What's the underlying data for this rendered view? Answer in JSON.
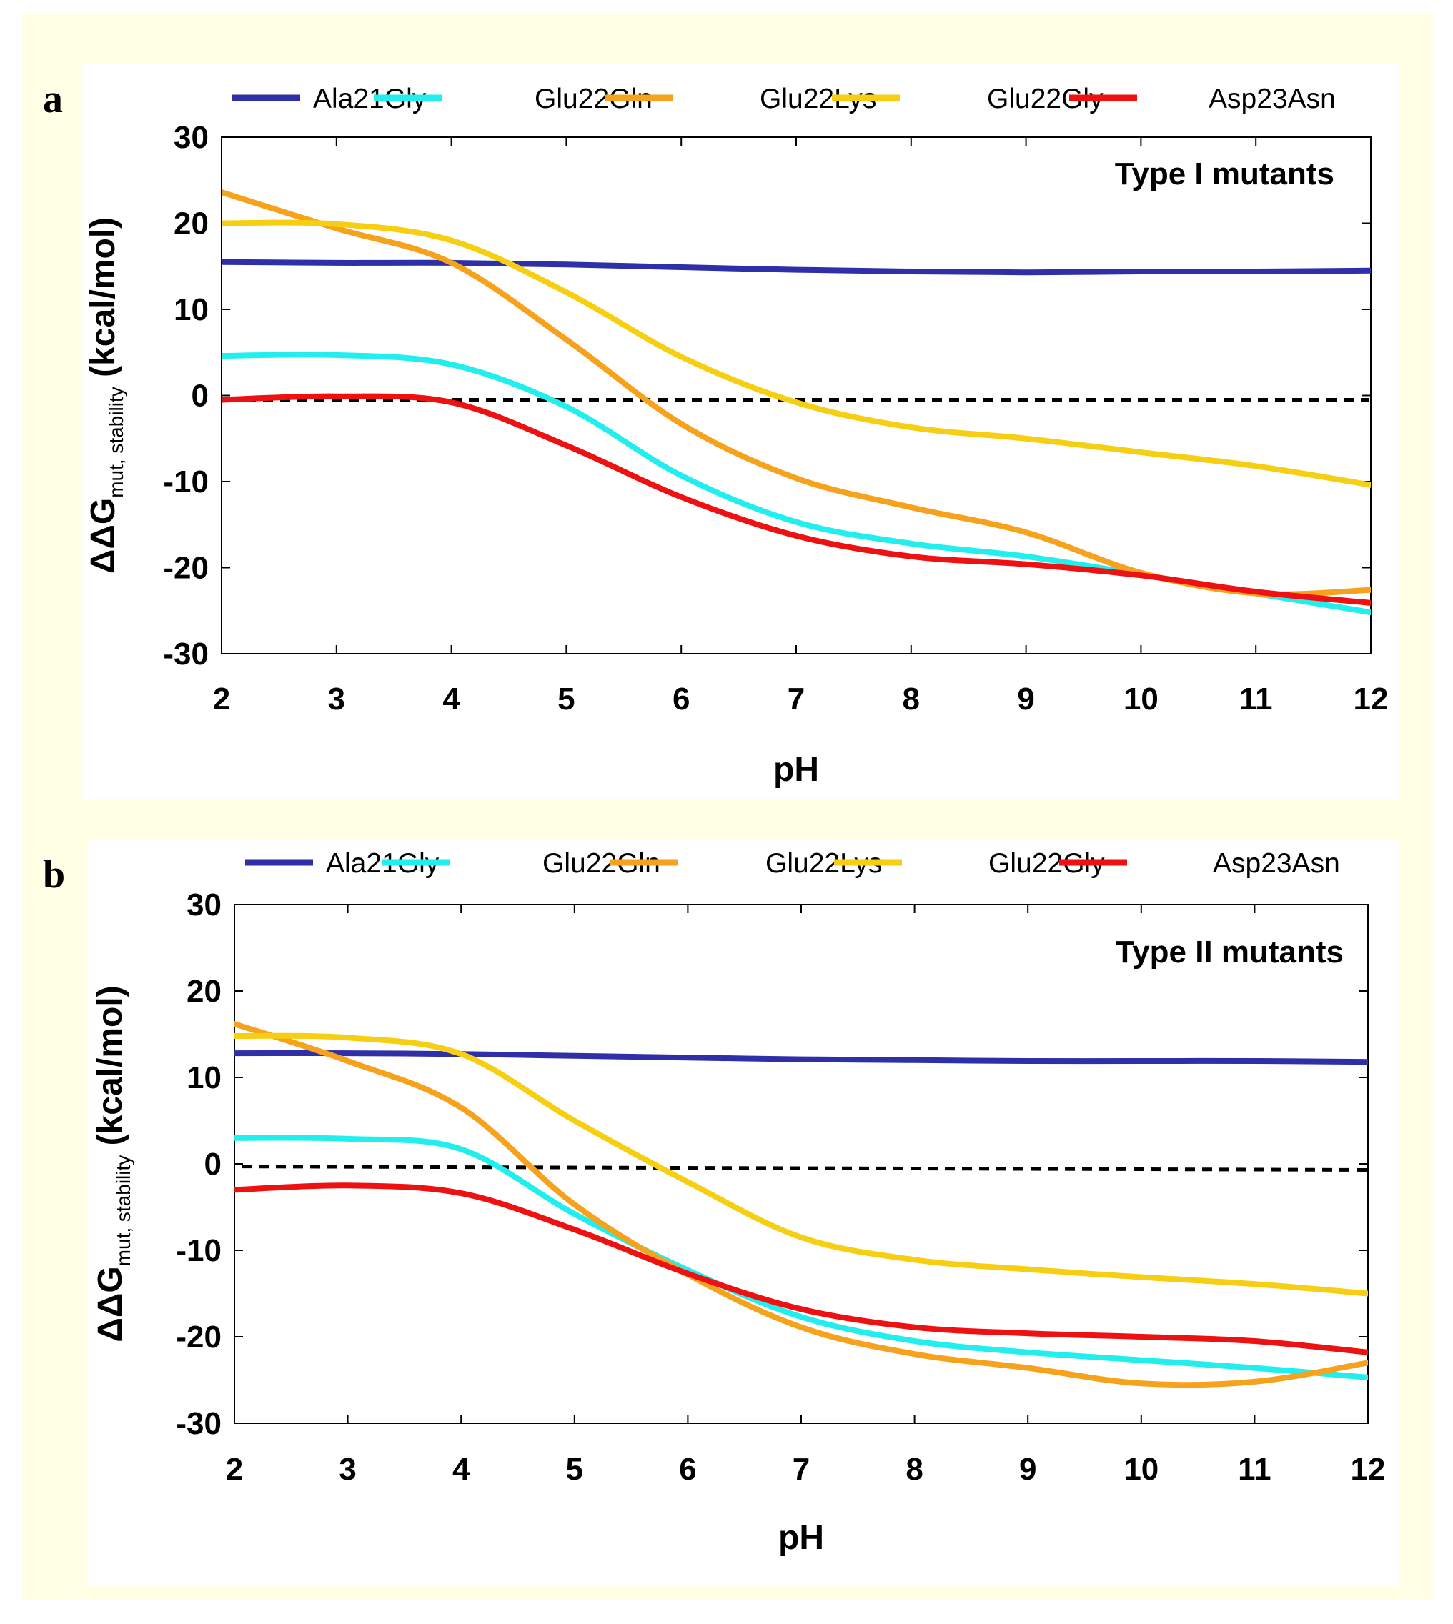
{
  "chart_data": [
    {
      "panel_label": "a",
      "type": "line",
      "title": "Type I mutants",
      "xlabel": "pH",
      "ylabel": {
        "main": "ΔΔG",
        "sub": "mut, stability",
        "unit": "(kcal/mol)"
      },
      "xlim": [
        2,
        12
      ],
      "ylim": [
        -30,
        30
      ],
      "xticks": [
        "2",
        "3",
        "4",
        "5",
        "6",
        "7",
        "8",
        "9",
        "10",
        "11",
        "12"
      ],
      "yticks": [
        "-30",
        "-20",
        "-10",
        "0",
        "10",
        "20",
        "30"
      ],
      "grid": false,
      "legend_position": "top",
      "reference_line": {
        "style": "dashed",
        "color": "#000000",
        "x": [
          2,
          12
        ],
        "y": [
          -0.5,
          -0.5
        ]
      },
      "x": [
        2,
        3,
        4,
        5,
        6,
        7,
        8,
        9,
        10,
        11,
        12
      ],
      "series": [
        {
          "name": "Ala21Gly",
          "color": "#2f2fa8",
          "values": [
            15.5,
            15.4,
            15.4,
            15.2,
            14.9,
            14.6,
            14.4,
            14.3,
            14.4,
            14.4,
            14.5
          ]
        },
        {
          "name": "Glu22Gln",
          "color": "#22eeee",
          "values": [
            4.6,
            4.7,
            3.6,
            -1.3,
            -9.3,
            -14.7,
            -17.2,
            -18.7,
            -20.8,
            -23.0,
            -25.2
          ]
        },
        {
          "name": "Glu22Lys",
          "color": "#f7a21c",
          "values": [
            23.6,
            19.4,
            15.4,
            6.5,
            -3.3,
            -9.6,
            -13.0,
            -15.9,
            -20.6,
            -23.0,
            -22.6
          ]
        },
        {
          "name": "Glu22Gly",
          "color": "#f7cf12",
          "values": [
            20.0,
            19.9,
            18.0,
            12.0,
            4.5,
            -0.8,
            -3.7,
            -5.0,
            -6.6,
            -8.2,
            -10.4
          ]
        },
        {
          "name": "Asp23Asn",
          "color": "#ee1111",
          "values": [
            -0.5,
            -0.1,
            -0.8,
            -5.8,
            -11.8,
            -16.3,
            -18.7,
            -19.6,
            -20.9,
            -22.8,
            -24.1
          ]
        }
      ]
    },
    {
      "panel_label": "b",
      "type": "line",
      "title": "Type II mutants",
      "xlabel": "pH",
      "ylabel": {
        "main": "ΔΔG",
        "sub": "mut, stability",
        "unit": "(kcal/mol)"
      },
      "xlim": [
        2,
        12
      ],
      "ylim": [
        -30,
        30
      ],
      "xticks": [
        "2",
        "3",
        "4",
        "5",
        "6",
        "7",
        "8",
        "9",
        "10",
        "11",
        "12"
      ],
      "yticks": [
        "-30",
        "-20",
        "-10",
        "0",
        "10",
        "20",
        "30"
      ],
      "grid": false,
      "legend_position": "top",
      "reference_line": {
        "style": "dashed",
        "color": "#000000",
        "x": [
          2,
          12
        ],
        "y": [
          -0.3,
          -0.7
        ]
      },
      "x": [
        2,
        3,
        4,
        5,
        6,
        7,
        8,
        9,
        10,
        11,
        12
      ],
      "series": [
        {
          "name": "Ala21Gly",
          "color": "#2f2fa8",
          "values": [
            12.8,
            12.8,
            12.7,
            12.5,
            12.3,
            12.1,
            12.0,
            11.9,
            11.9,
            11.9,
            11.8
          ]
        },
        {
          "name": "Glu22Gln",
          "color": "#22eeee",
          "values": [
            3.0,
            2.9,
            1.7,
            -5.8,
            -12.3,
            -17.7,
            -20.5,
            -21.8,
            -22.7,
            -23.6,
            -24.7
          ]
        },
        {
          "name": "Glu22Lys",
          "color": "#f7a21c",
          "values": [
            16.2,
            11.9,
            6.5,
            -4.7,
            -12.8,
            -18.9,
            -22.0,
            -23.6,
            -25.4,
            -25.2,
            -23.0
          ]
        },
        {
          "name": "Glu22Gly",
          "color": "#f7cf12",
          "values": [
            14.8,
            14.6,
            12.7,
            5.0,
            -2.1,
            -8.5,
            -11.1,
            -12.2,
            -13.1,
            -13.9,
            -15.0
          ]
        },
        {
          "name": "Asp23Asn",
          "color": "#ee1111",
          "values": [
            -3.0,
            -2.5,
            -3.4,
            -7.6,
            -12.7,
            -16.8,
            -18.9,
            -19.6,
            -20.0,
            -20.5,
            -21.8
          ]
        }
      ]
    }
  ]
}
